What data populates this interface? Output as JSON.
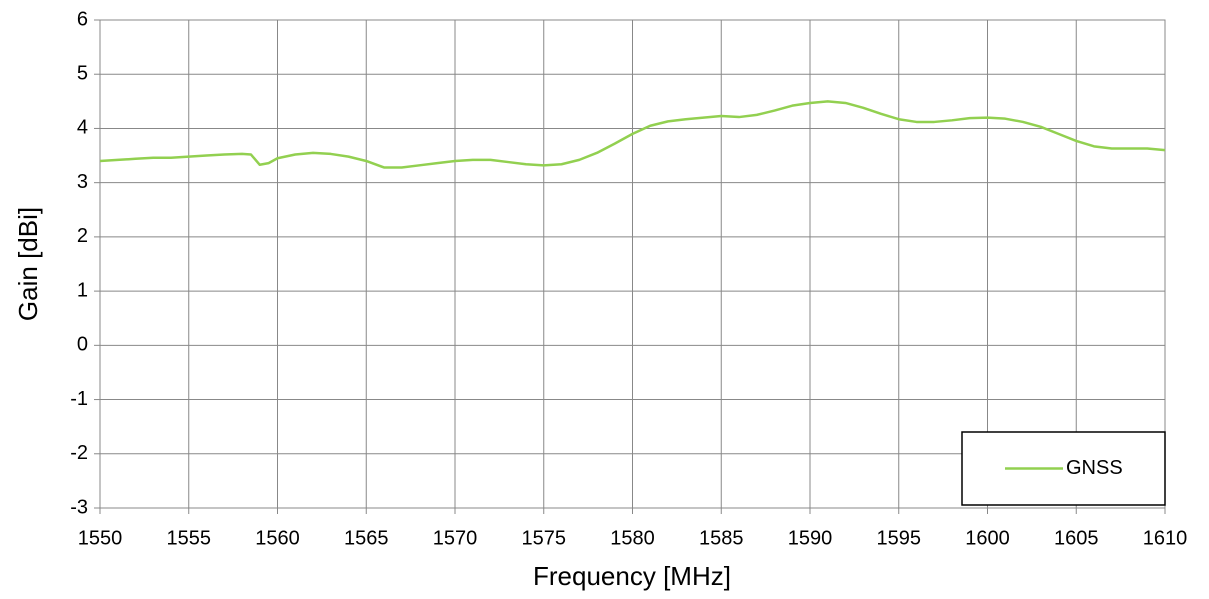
{
  "chart_data": {
    "type": "line",
    "xlabel": "Frequency [MHz]",
    "ylabel": "Gain [dBi]",
    "x": [
      1550,
      1551,
      1552,
      1553,
      1554,
      1555,
      1556,
      1557,
      1558,
      1558.5,
      1559,
      1559.5,
      1560,
      1561,
      1562,
      1563,
      1564,
      1565,
      1566,
      1567,
      1568,
      1569,
      1570,
      1571,
      1572,
      1573,
      1574,
      1575,
      1576,
      1577,
      1578,
      1579,
      1580,
      1581,
      1582,
      1583,
      1584,
      1585,
      1586,
      1587,
      1588,
      1589,
      1590,
      1591,
      1592,
      1593,
      1594,
      1595,
      1596,
      1597,
      1598,
      1599,
      1600,
      1601,
      1602,
      1603,
      1604,
      1605,
      1606,
      1607,
      1608,
      1609,
      1610
    ],
    "series": [
      {
        "name": "GNSS",
        "color": "#92d050",
        "values": [
          3.4,
          3.42,
          3.44,
          3.46,
          3.46,
          3.48,
          3.5,
          3.52,
          3.53,
          3.52,
          3.33,
          3.36,
          3.45,
          3.52,
          3.55,
          3.53,
          3.48,
          3.4,
          3.28,
          3.28,
          3.32,
          3.36,
          3.4,
          3.42,
          3.42,
          3.38,
          3.34,
          3.32,
          3.34,
          3.42,
          3.55,
          3.72,
          3.9,
          4.05,
          4.13,
          4.17,
          4.2,
          4.23,
          4.21,
          4.25,
          4.33,
          4.42,
          4.47,
          4.5,
          4.47,
          4.38,
          4.27,
          4.17,
          4.12,
          4.12,
          4.15,
          4.19,
          4.2,
          4.18,
          4.12,
          4.03,
          3.9,
          3.77,
          3.67,
          3.63,
          3.63,
          3.63,
          3.6
        ]
      }
    ],
    "xlim": [
      1550,
      1610
    ],
    "xticks": [
      1550,
      1555,
      1560,
      1565,
      1570,
      1575,
      1580,
      1585,
      1590,
      1595,
      1600,
      1605,
      1610
    ],
    "ylim": [
      -3,
      6
    ],
    "yticks": [
      -3,
      -2,
      -1,
      0,
      1,
      2,
      3,
      4,
      5,
      6
    ],
    "grid": true,
    "legend": "lower right"
  }
}
